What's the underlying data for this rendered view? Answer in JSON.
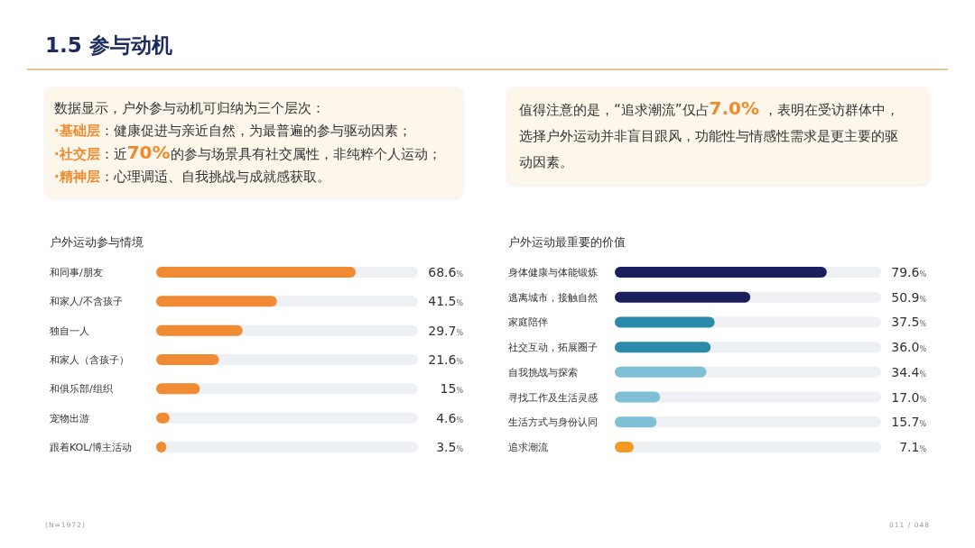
{
  "chart_data": [
    {
      "type": "other",
      "title": "1.5 参与动机",
      "annotations": [
        "数据显示，户外参与动机可归纳为三个层次：",
        "·基础层：健康促进与亲近自然，为最普遍的参与驱动因素；",
        "·社交层：近70%的参与场景具有社交属性，非纯粹个人运动；",
        "·精神层：心理调适、自我挑战与成就感获取。"
      ]
    },
    {
      "type": "other",
      "annotations": [
        "值得注意的是，“追求潮流”仅占7.0% ，表明在受访群体中，选择户外运动并非盲目跟风，功能性与情感性需求是更主要的驱动因素。"
      ]
    },
    {
      "type": "bar",
      "orientation": "horizontal",
      "title": "户外运动参与情境",
      "categories": [
        "和同事/朋友",
        "和家人/不含孩子",
        "独自一人",
        "和家人（含孩子）",
        "和俱乐部/组织",
        "宠物出游",
        "跟着KOL/博主活动"
      ],
      "values": [
        68.6,
        41.5,
        29.7,
        21.6,
        15,
        4.6,
        3.5
      ],
      "value_labels": [
        "68.6%",
        "41.5%",
        "29.7%",
        "21.6%",
        "15%",
        "4.6%",
        "3.5%"
      ],
      "color": "#f08a33",
      "xlim": [
        0,
        90
      ],
      "tick_labels": "y",
      "annotations": [
        "(N=1972)"
      ]
    },
    {
      "type": "bar",
      "orientation": "horizontal",
      "title": "户外运动最重要的价值",
      "categories": [
        "身体健康与体能锻炼",
        "逃离城市，接触自然",
        "家庭陪伴",
        "社交互动，拓展圈子",
        "自我挑战与探索",
        "寻找工作及生活灵感",
        "生活方式与身份认同",
        "追求潮流"
      ],
      "values": [
        79.6,
        50.9,
        37.5,
        36.0,
        34.4,
        17.0,
        15.7,
        7.1
      ],
      "value_labels": [
        "79.6%",
        "50.9%",
        "37.5%",
        "36.0%",
        "34.4%",
        "17.0%",
        "15.7%",
        "7.1%"
      ],
      "colors": [
        "#1b205c",
        "#1b205c",
        "#2a8bab",
        "#2a8bab",
        "#80c0d6",
        "#80c0d6",
        "#80c0d6",
        "#f39a22"
      ],
      "xlim": [
        0,
        100
      ],
      "tick_labels": "y",
      "annotations": [
        "011 / 048"
      ]
    }
  ]
}
